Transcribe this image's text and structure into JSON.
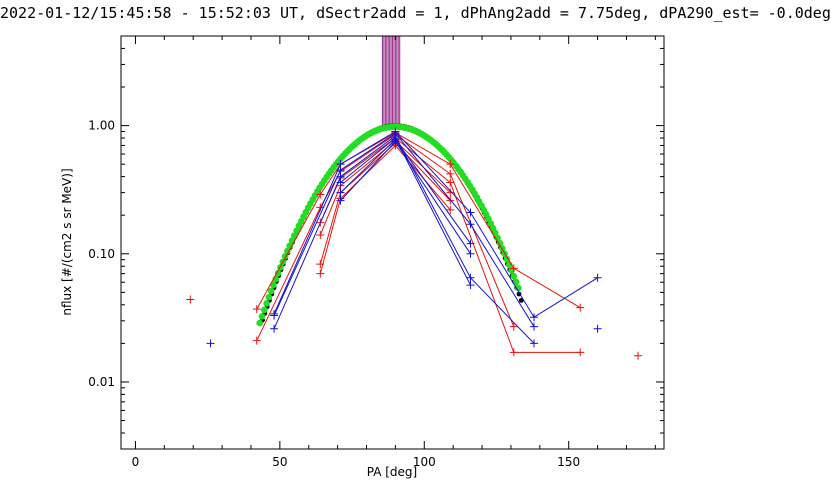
{
  "header": {
    "time_range": "2022-01-12/15:45:58 - 15:52:03 UT,",
    "sectr": "dSectr2add = 1,",
    "phang": "dPhAng2add = 7.75deg,",
    "pa290": "dPA290_est=  -0.0deg"
  },
  "colors": {
    "red": "#e8120a",
    "blue": "#1414d0",
    "green": "#22dd22",
    "black": "#000000",
    "purple": "#7a2a8a",
    "magenta": "#b0308a"
  },
  "chart_data": {
    "type": "scatter",
    "xlabel": "PA [deg]",
    "ylabel": "nflux [#/(cm2 s sr MeV)]",
    "xlim": [
      -5,
      183
    ],
    "ylim": [
      0.003,
      5.0
    ],
    "yscale": "log",
    "xticks": [
      {
        "value": 0,
        "label": "0"
      },
      {
        "value": 50,
        "label": "50"
      },
      {
        "value": 100,
        "label": "100"
      },
      {
        "value": 150,
        "label": "150"
      }
    ],
    "yticks": [
      {
        "value": 1.0,
        "label": "1.00"
      },
      {
        "value": 0.1,
        "label": "0.10"
      },
      {
        "value": 0.01,
        "label": "0.01"
      }
    ],
    "vlines": {
      "x": [
        85.5,
        86.0,
        86.5,
        87.0,
        87.5,
        88.0,
        88.5,
        89.0,
        89.5,
        90.0,
        90.5,
        91.0,
        91.5
      ],
      "y_from": 1.0,
      "y_to": 5.0
    },
    "fits": [
      {
        "color_key": "black",
        "center": 90,
        "sigma": 17.4,
        "peak": 1.0,
        "xmin": 44,
        "xmax": 134
      },
      {
        "color_key": "green",
        "center": 90,
        "sigma": 17.7,
        "peak": 0.98,
        "xmin": 43,
        "xmax": 133
      }
    ],
    "series": [
      {
        "color_key": "red",
        "points": [
          [
            42,
            0.037
          ],
          [
            64,
            0.29
          ],
          [
            71,
            0.5
          ],
          [
            90,
            0.88
          ],
          [
            109,
            0.5
          ],
          [
            131,
            0.077
          ],
          [
            154,
            0.038
          ]
        ]
      },
      {
        "color_key": "red",
        "points": [
          [
            42,
            0.021
          ],
          [
            64,
            0.23
          ],
          [
            71,
            0.44
          ],
          [
            90,
            0.85
          ],
          [
            109,
            0.42
          ],
          [
            131,
            0.027
          ]
        ]
      },
      {
        "color_key": "red",
        "points": [
          [
            64,
            0.175
          ],
          [
            71,
            0.39
          ],
          [
            90,
            0.8
          ],
          [
            109,
            0.36
          ],
          [
            131,
            0.017
          ],
          [
            154,
            0.017
          ]
        ]
      },
      {
        "color_key": "red",
        "points": [
          [
            64,
            0.14
          ],
          [
            71,
            0.34
          ],
          [
            90,
            0.76
          ],
          [
            109,
            0.3
          ]
        ]
      },
      {
        "color_key": "red",
        "points": [
          [
            64,
            0.083
          ],
          [
            71,
            0.3
          ],
          [
            90,
            0.73
          ],
          [
            109,
            0.26
          ]
        ]
      },
      {
        "color_key": "red",
        "points": [
          [
            64,
            0.07
          ],
          [
            71,
            0.27
          ],
          [
            90,
            0.7
          ],
          [
            109,
            0.22
          ]
        ]
      },
      {
        "color_key": "red",
        "points": [
          [
            19,
            0.044
          ]
        ]
      },
      {
        "color_key": "red",
        "points": [
          [
            174,
            0.016
          ]
        ]
      },
      {
        "color_key": "blue",
        "points": [
          [
            48,
            0.034
          ],
          [
            71,
            0.5
          ],
          [
            90,
            0.9
          ],
          [
            116,
            0.21
          ],
          [
            138,
            0.032
          ],
          [
            160,
            0.065
          ]
        ]
      },
      {
        "color_key": "blue",
        "points": [
          [
            48,
            0.033
          ],
          [
            71,
            0.45
          ],
          [
            90,
            0.87
          ],
          [
            116,
            0.17
          ],
          [
            138,
            0.027
          ]
        ]
      },
      {
        "color_key": "blue",
        "points": [
          [
            48,
            0.026
          ],
          [
            71,
            0.4
          ],
          [
            90,
            0.83
          ],
          [
            116,
            0.065
          ],
          [
            138,
            0.02
          ]
        ]
      },
      {
        "color_key": "blue",
        "points": [
          [
            71,
            0.36
          ],
          [
            90,
            0.8
          ],
          [
            116,
            0.057
          ]
        ]
      },
      {
        "color_key": "blue",
        "points": [
          [
            71,
            0.3
          ],
          [
            90,
            0.78
          ],
          [
            116,
            0.12
          ]
        ]
      },
      {
        "color_key": "blue",
        "points": [
          [
            71,
            0.26
          ],
          [
            90,
            0.75
          ],
          [
            116,
            0.1
          ]
        ]
      },
      {
        "color_key": "blue",
        "points": [
          [
            26,
            0.02
          ]
        ]
      },
      {
        "color_key": "blue",
        "points": [
          [
            160,
            0.026
          ]
        ]
      }
    ]
  }
}
